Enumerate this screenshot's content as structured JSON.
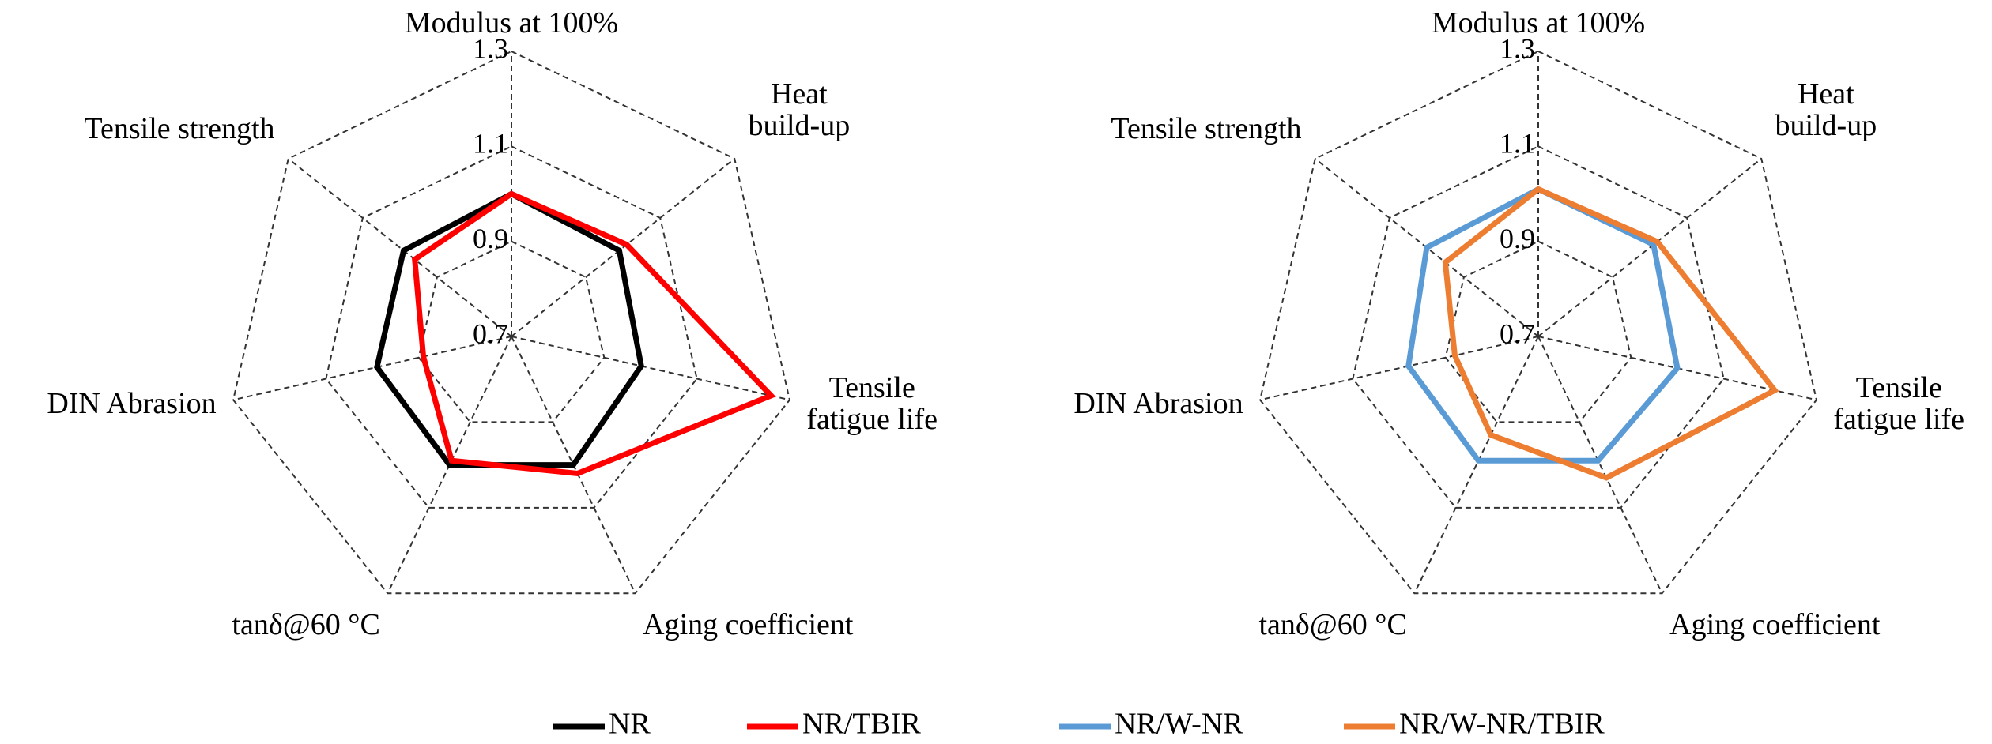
{
  "chart_data": [
    {
      "type": "radar",
      "categories": [
        "Modulus at 100%",
        "Heat\nbuild-up",
        "Tensile\nfatigue life",
        "Aging coefficient",
        "tanδ@60 °C",
        "DIN Abrasion",
        "Tensile strength"
      ],
      "ylim": [
        0.7,
        1.3
      ],
      "yticks": [
        0.7,
        0.9,
        1.1,
        1.3
      ],
      "grid": true,
      "series": [
        {
          "name": "NR",
          "color": "#000000",
          "values": [
            1.0,
            0.99,
            0.98,
            1.0,
            1.0,
            0.99,
            0.99
          ]
        },
        {
          "name": "NR/TBIR",
          "color": "#ff0000",
          "values": [
            1.0,
            1.01,
            1.26,
            1.02,
            0.99,
            0.89,
            0.96
          ]
        }
      ]
    },
    {
      "type": "radar",
      "categories": [
        "Modulus at 100%",
        "Heat\nbuild-up",
        "Tensile\nfatigue life",
        "Aging coefficient",
        "tanδ@60 °C",
        "DIN Abrasion",
        "Tensile strength"
      ],
      "ylim": [
        0.7,
        1.3
      ],
      "yticks": [
        0.7,
        0.9,
        1.1,
        1.3
      ],
      "grid": true,
      "series": [
        {
          "name": "NR/W-NR",
          "color": "#5b9bd5",
          "values": [
            1.01,
            1.01,
            1.0,
            0.99,
            0.99,
            0.98,
            1.0
          ]
        },
        {
          "name": "NR/W-NR/TBIR",
          "color": "#ed7d31",
          "values": [
            1.01,
            1.02,
            1.21,
            1.03,
            0.93,
            0.88,
            0.95
          ]
        }
      ]
    }
  ]
}
